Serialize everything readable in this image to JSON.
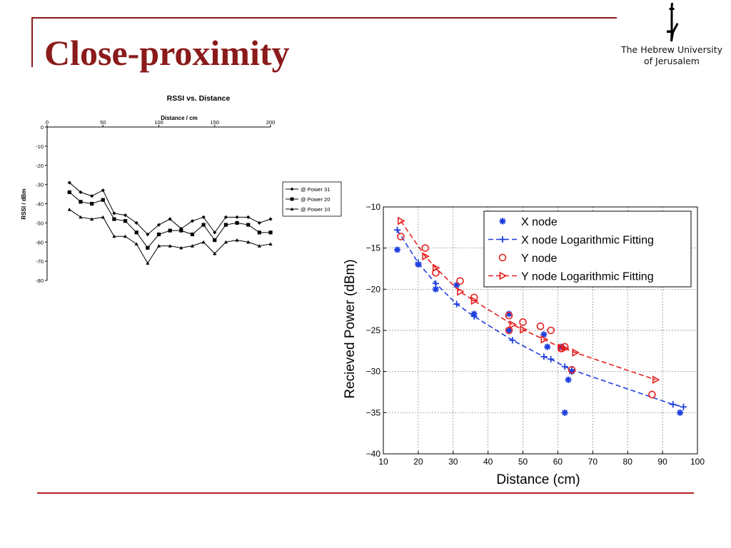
{
  "slide": {
    "title": "Close-proximity"
  },
  "logo": {
    "line1": "The Hebrew University",
    "line2": "of Jerusalem",
    "icon": "menorah-mark-icon"
  },
  "chart_data": [
    {
      "type": "line",
      "title": "RSSI vs. Distance",
      "xlabel": "Distance / cm",
      "ylabel": "RSSI / dBm",
      "xlim": [
        0,
        200
      ],
      "ylim": [
        -80,
        0
      ],
      "xticks": [
        0,
        50,
        100,
        150,
        200
      ],
      "yticks": [
        0,
        -10,
        -20,
        -30,
        -40,
        -50,
        -60,
        -70,
        -80
      ],
      "x_axis_position": "top",
      "legend_position": "right",
      "x": [
        20,
        30,
        40,
        50,
        60,
        70,
        80,
        90,
        100,
        110,
        120,
        130,
        140,
        150,
        160,
        170,
        180,
        190,
        200
      ],
      "series": [
        {
          "name": "@ Power 31",
          "marker": "diamond",
          "color": "#000000",
          "values": [
            -29,
            -34,
            -36,
            -33,
            -45,
            -46,
            -50,
            -56,
            -51,
            -48,
            -53,
            -49,
            -47,
            -55,
            -47,
            -47,
            -47,
            -50,
            -48
          ]
        },
        {
          "name": "@ Power 20",
          "marker": "square",
          "color": "#000000",
          "values": [
            -34,
            -39,
            -40,
            -38,
            -48,
            -49,
            -55,
            -63,
            -56,
            -54,
            -54,
            -56,
            -51,
            -59,
            -51,
            -50,
            -51,
            -55,
            -55
          ]
        },
        {
          "name": "@ Power 10",
          "marker": "triangle",
          "color": "#000000",
          "values": [
            -43,
            -47,
            -48,
            -47,
            -57,
            -57,
            -61,
            -71,
            -62,
            -62,
            -63,
            -62,
            -60,
            -66,
            -60,
            -59,
            -60,
            -62,
            -61
          ]
        }
      ]
    },
    {
      "type": "scatter",
      "title": "",
      "xlabel": "Distance (cm)",
      "ylabel": "Recieved Power (dBm)",
      "xlim": [
        10,
        100
      ],
      "ylim": [
        -40,
        -10
      ],
      "xticks": [
        10,
        20,
        30,
        40,
        50,
        60,
        70,
        80,
        90,
        100
      ],
      "yticks": [
        -10,
        -15,
        -20,
        -25,
        -30,
        -35,
        -40
      ],
      "grid": true,
      "legend_position": "top-right",
      "series": [
        {
          "name": "X node",
          "kind": "points",
          "marker": "asterisk",
          "color": "#1f3fe0",
          "x": [
            14,
            20,
            25,
            31,
            36,
            46,
            46,
            56,
            57,
            61,
            62,
            63,
            64,
            95
          ],
          "y": [
            -15.2,
            -17,
            -20,
            -19.5,
            -23,
            -23,
            -25,
            -25.5,
            -27,
            -27,
            -35,
            -31,
            -30,
            -35
          ]
        },
        {
          "name": "X node Logarithmic Fitting",
          "kind": "fit",
          "marker": "plus",
          "dash": "dashed",
          "color": "#1f3fe0",
          "x": [
            14,
            20,
            25,
            31,
            36,
            47,
            56,
            58,
            62,
            64,
            93,
            96
          ],
          "y": [
            -12.8,
            -16.8,
            -19.3,
            -21.8,
            -23.3,
            -26.2,
            -28.2,
            -28.5,
            -29.4,
            -29.8,
            -34,
            -34.3
          ]
        },
        {
          "name": "Y node",
          "kind": "points",
          "marker": "circle",
          "color": "#e62020",
          "x": [
            15,
            22,
            25,
            32,
            36,
            46,
            46,
            50,
            55,
            58,
            61,
            62,
            64,
            87
          ],
          "y": [
            -13.6,
            -15,
            -18,
            -19,
            -21,
            -23.2,
            -25,
            -24,
            -24.5,
            -25,
            -27.2,
            -27,
            -29.8,
            -32.8
          ]
        },
        {
          "name": "Y node Logarithmic Fitting",
          "kind": "fit",
          "marker": "triangle-right",
          "dash": "dashed",
          "color": "#e62020",
          "x": [
            15,
            22,
            25,
            32,
            36,
            47,
            50,
            56,
            61,
            62,
            65,
            88
          ],
          "y": [
            -11.7,
            -16,
            -17.4,
            -20.3,
            -21.4,
            -24.3,
            -24.9,
            -26.1,
            -27.1,
            -27.2,
            -27.7,
            -31
          ]
        }
      ]
    }
  ]
}
